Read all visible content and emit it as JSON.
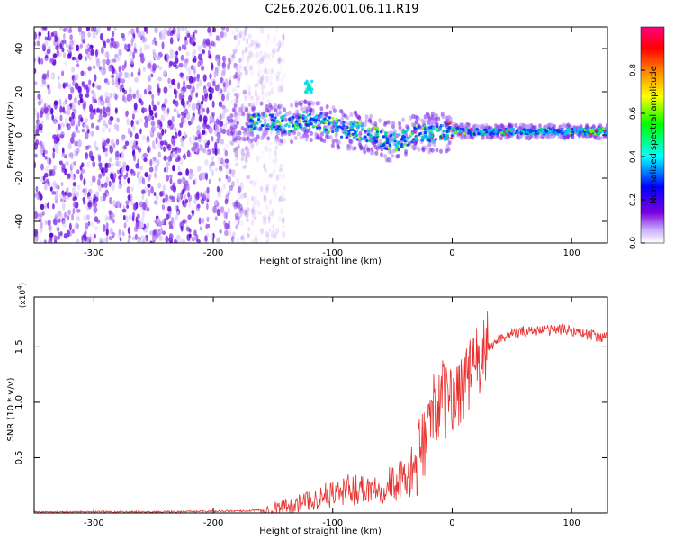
{
  "title": "C2E6.2026.001.06.11.R19",
  "chart_data": [
    {
      "type": "heatmap",
      "name": "spectrogram",
      "xlabel": "Height of straight line (km)",
      "ylabel": "Frequency (Hz)",
      "xlim": [
        -350,
        130
      ],
      "ylim": [
        -50,
        50
      ],
      "xticks": [
        -300,
        -200,
        -100,
        0,
        100
      ],
      "xtick_labels": [
        "-300",
        "-200",
        "-100",
        "0",
        "100"
      ],
      "yticks": [
        -40,
        -20,
        0,
        20,
        40
      ],
      "ytick_labels": [
        "-40",
        "-20",
        "0",
        "20",
        "40"
      ],
      "colorbar": {
        "label": "Normalized spectral amplitude",
        "range": [
          0,
          1
        ],
        "ticks": [
          0.0,
          0.2,
          0.4,
          0.6,
          0.8
        ],
        "tick_labels": [
          "0.0",
          "0.2",
          "0.4",
          "0.6",
          "0.8"
        ],
        "stops": [
          "#ffffff",
          "#c8b0ff",
          "#7b00e0",
          "#0000ff",
          "#00ffff",
          "#00ff00",
          "#ffff00",
          "#ff8000",
          "#ff0000",
          "#ff0080"
        ]
      },
      "noise_region_x": [
        -350,
        -165
      ],
      "signal_ridge": {
        "x": [
          -180,
          -160,
          -140,
          -125,
          -110,
          -95,
          -80,
          -65,
          -55,
          -45,
          -35,
          -20,
          -10,
          0,
          20,
          60,
          100,
          130
        ],
        "frequency": [
          5,
          6,
          5,
          7,
          6,
          3,
          2,
          0,
          -3,
          -3,
          0,
          1,
          1,
          2,
          1.5,
          1.5,
          1.5,
          1.5
        ]
      },
      "secondary_feature": {
        "x": -120,
        "frequency": 22
      }
    },
    {
      "type": "line",
      "name": "snr",
      "xlabel": "Height of straight line (km)",
      "ylabel": "SNR (10 * v/v)",
      "scale_label": "(x10",
      "scale_exponent": "4",
      "xlim": [
        -350,
        130
      ],
      "ylim": [
        0,
        1.95
      ],
      "xticks": [
        -300,
        -200,
        -100,
        0,
        100
      ],
      "xtick_labels": [
        "-300",
        "-200",
        "-100",
        "0",
        "100"
      ],
      "yticks": [
        0.5,
        1.0,
        1.5
      ],
      "ytick_labels": [
        "0.5",
        "1.0",
        "1.5"
      ],
      "series": [
        {
          "name": "SNR",
          "color": "#e8302e",
          "x": [
            -350,
            -250,
            -170,
            -150,
            -130,
            -110,
            -100,
            -90,
            -80,
            -60,
            -40,
            -30,
            -25,
            -20,
            -15,
            -10,
            -5,
            0,
            5,
            10,
            15,
            20,
            30,
            40,
            50,
            60,
            70,
            80,
            90,
            100,
            110,
            120,
            130
          ],
          "y": [
            0.01,
            0.01,
            0.02,
            0.04,
            0.08,
            0.14,
            0.18,
            0.2,
            0.22,
            0.24,
            0.3,
            0.42,
            0.6,
            0.8,
            0.95,
            1.05,
            1.0,
            1.0,
            1.1,
            1.2,
            1.25,
            1.35,
            1.48,
            1.58,
            1.62,
            1.64,
            1.65,
            1.65,
            1.66,
            1.65,
            1.62,
            1.6,
            1.58
          ]
        }
      ]
    }
  ]
}
